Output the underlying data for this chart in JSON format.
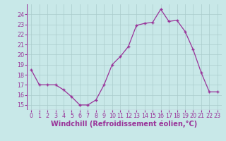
{
  "x": [
    0,
    1,
    2,
    3,
    4,
    5,
    6,
    7,
    8,
    9,
    10,
    11,
    12,
    13,
    14,
    15,
    16,
    17,
    18,
    19,
    20,
    21,
    22,
    23
  ],
  "y": [
    18.5,
    17.0,
    17.0,
    17.0,
    16.5,
    15.8,
    15.0,
    15.0,
    15.5,
    17.0,
    19.0,
    19.8,
    20.8,
    22.9,
    23.1,
    23.2,
    24.5,
    23.3,
    23.4,
    22.3,
    20.5,
    18.2,
    16.3,
    16.3
  ],
  "line_color": "#993399",
  "marker": "+",
  "marker_color": "#993399",
  "bg_color": "#c8e8e8",
  "grid_color": "#aacccc",
  "xlabel": "Windchill (Refroidissement éolien,°C)",
  "xlabel_color": "#993399",
  "tick_color": "#993399",
  "ylim": [
    14.5,
    25.0
  ],
  "xlim": [
    -0.5,
    23.5
  ],
  "yticks": [
    15,
    16,
    17,
    18,
    19,
    20,
    21,
    22,
    23,
    24
  ],
  "xticks": [
    0,
    1,
    2,
    3,
    4,
    5,
    6,
    7,
    8,
    9,
    10,
    11,
    12,
    13,
    14,
    15,
    16,
    17,
    18,
    19,
    20,
    21,
    22,
    23
  ],
  "tick_fontsize": 5.8,
  "xlabel_fontsize": 7.0,
  "linewidth": 0.9,
  "markersize": 3.0
}
